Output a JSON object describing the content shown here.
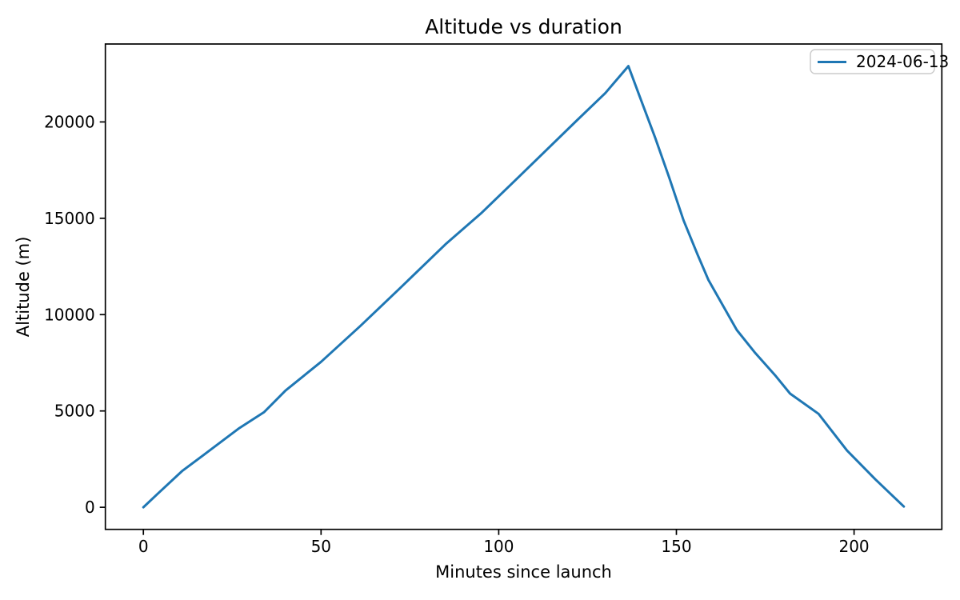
{
  "chart_data": {
    "type": "line",
    "title": "Altitude vs duration",
    "xlabel": "Minutes since launch",
    "ylabel": "Altitude (m)",
    "xlim": [
      -10.7,
      224.7
    ],
    "ylim": [
      -1145,
      24045
    ],
    "xticks": [
      0,
      50,
      100,
      150,
      200
    ],
    "yticks": [
      0,
      5000,
      10000,
      15000,
      20000
    ],
    "grid": false,
    "background_color": "#ffffff",
    "axes_color": "#000000",
    "legend": {
      "position": "upper right",
      "border_color": "#cccccc"
    },
    "series": [
      {
        "name": "2024-06-13",
        "color": "#1f77b4",
        "points": [
          [
            0,
            0
          ],
          [
            4,
            700
          ],
          [
            11,
            1900
          ],
          [
            18,
            2860
          ],
          [
            27,
            4110
          ],
          [
            34,
            4940
          ],
          [
            40,
            6060
          ],
          [
            50,
            7550
          ],
          [
            61,
            9400
          ],
          [
            72,
            11330
          ],
          [
            85,
            13650
          ],
          [
            95,
            15250
          ],
          [
            106,
            17210
          ],
          [
            122,
            20080
          ],
          [
            130,
            21500
          ],
          [
            136.5,
            22900
          ],
          [
            139.5,
            21400
          ],
          [
            144,
            19200
          ],
          [
            148,
            17100
          ],
          [
            152,
            14900
          ],
          [
            156,
            13100
          ],
          [
            159,
            11800
          ],
          [
            167,
            9200
          ],
          [
            172,
            8050
          ],
          [
            178,
            6800
          ],
          [
            182,
            5900
          ],
          [
            190,
            4850
          ],
          [
            198,
            2950
          ],
          [
            206,
            1450
          ],
          [
            214,
            40
          ]
        ]
      }
    ]
  }
}
